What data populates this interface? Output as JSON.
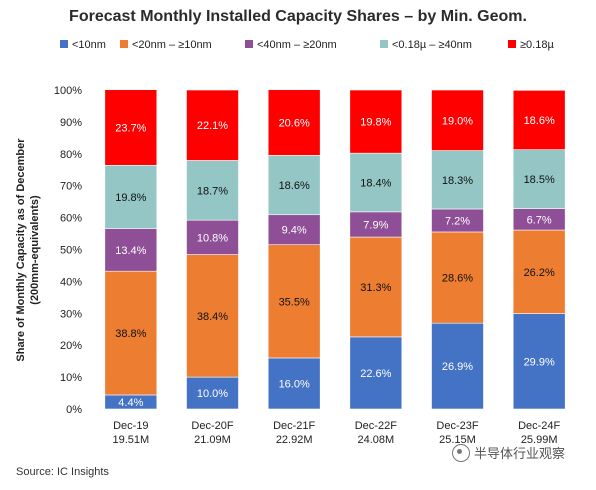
{
  "title": "Forecast Monthly Installed Capacity Shares – by Min. Geom.",
  "source": "Source:  IC Insights",
  "watermark": "半导体行业观察",
  "watermark_icon": "wechat-icon",
  "chart_data": {
    "type": "bar",
    "stacked": true,
    "categories": [
      "Dec-19",
      "Dec-20F",
      "Dec-21F",
      "Dec-22F",
      "Dec-23F",
      "Dec-24F"
    ],
    "category_sublabels": [
      "19.51M",
      "21.09M",
      "22.92M",
      "24.08M",
      "25.15M",
      "25.99M"
    ],
    "series": [
      {
        "name": "<10nm",
        "color": "#4472c4",
        "values": [
          4.4,
          10.0,
          16.0,
          22.6,
          26.9,
          29.9
        ]
      },
      {
        "name": "<20nm – ≥10nm",
        "color": "#ed7d31",
        "values": [
          38.8,
          38.4,
          35.5,
          31.3,
          28.6,
          26.2
        ]
      },
      {
        "name": "<40nm – ≥20nm",
        "color": "#8e4f97",
        "values": [
          13.4,
          10.8,
          9.4,
          7.9,
          7.2,
          6.7
        ]
      },
      {
        "name": "<0.18µ – ≥40nm",
        "color": "#93c6c4",
        "values": [
          19.8,
          18.7,
          18.6,
          18.4,
          18.3,
          18.5
        ]
      },
      {
        "name": "≥0.18µ",
        "color": "#ff0000",
        "values": [
          23.7,
          22.1,
          20.6,
          19.8,
          19.0,
          18.6
        ]
      }
    ],
    "ylabel": "Share of Monthly Capacity as of December",
    "ylabel2": "(200mm-equivalents)",
    "ylim": [
      0,
      100
    ],
    "yticks": [
      "0%",
      "10%",
      "20%",
      "30%",
      "40%",
      "50%",
      "60%",
      "70%",
      "80%",
      "90%",
      "100%"
    ],
    "legend_position": "top",
    "grid": false
  }
}
